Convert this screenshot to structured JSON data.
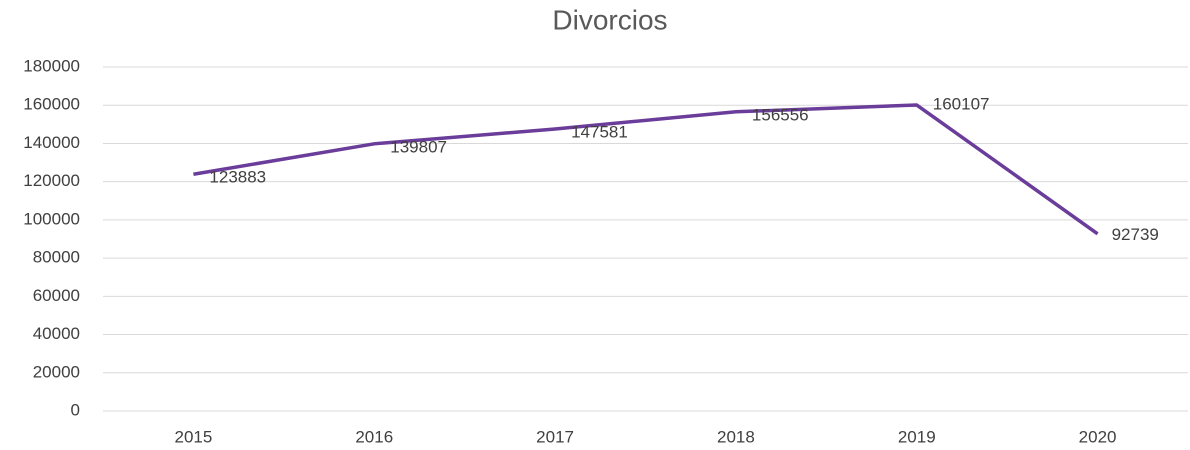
{
  "chart_data": {
    "type": "line",
    "title": "Divorcios",
    "categories": [
      "2015",
      "2016",
      "2017",
      "2018",
      "2019",
      "2020"
    ],
    "values": [
      123883,
      139807,
      147581,
      156556,
      160107,
      92739
    ],
    "color": "#6a3d9a",
    "ylim": [
      0,
      180000
    ],
    "yticks": [
      0,
      20000,
      40000,
      60000,
      80000,
      100000,
      120000,
      140000,
      160000,
      180000
    ],
    "grid": true
  }
}
